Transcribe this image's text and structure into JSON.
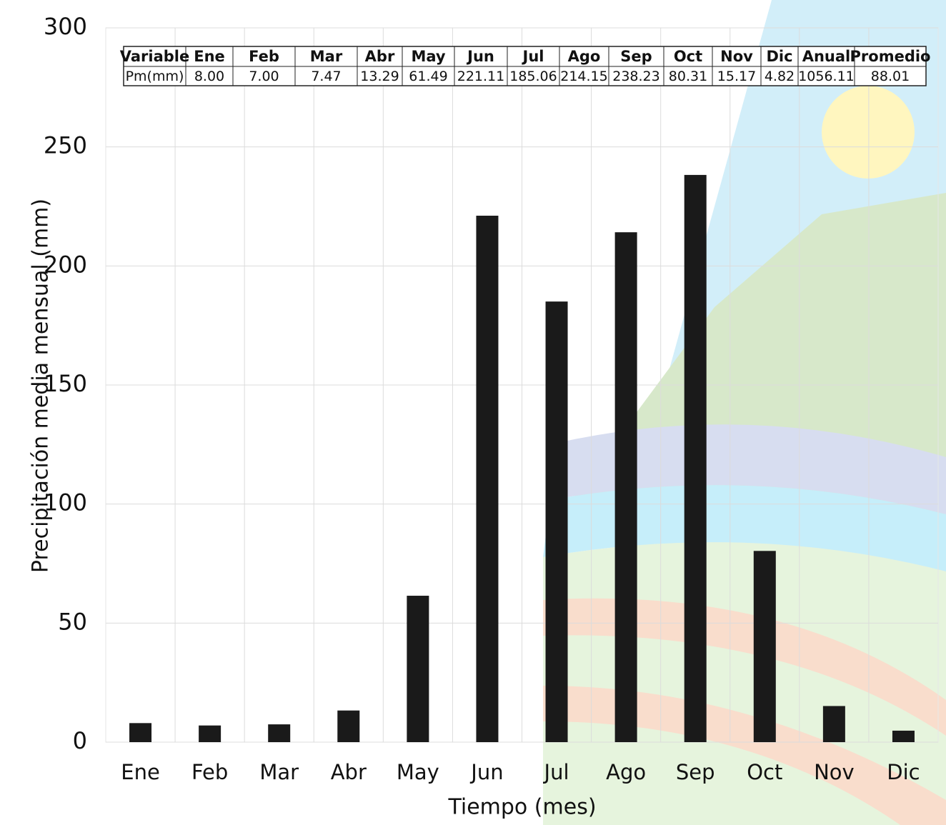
{
  "chart_data": {
    "type": "bar",
    "x_label": "Tiempo (mes)",
    "y_label": "Precipitación media mensual (mm)",
    "categories": [
      "Ene",
      "Feb",
      "Mar",
      "Abr",
      "May",
      "Jun",
      "Jul",
      "Ago",
      "Sep",
      "Oct",
      "Nov",
      "Dic"
    ],
    "values": [
      8,
      7,
      7.47,
      13.29,
      61.49,
      221.11,
      185.06,
      214.15,
      238.23,
      80.31,
      15.17,
      4.82
    ],
    "value_labels": [
      "8.00",
      "7.00",
      "7.47",
      "13.29",
      "61.49",
      "221.11",
      "185.06",
      "214.15",
      "238.23",
      "80.31",
      "15.17",
      "4.82"
    ],
    "color": "#1a1a1a",
    "ylim": [
      0,
      300
    ],
    "yticks": [
      0,
      50,
      100,
      150,
      200,
      250,
      300
    ],
    "grid": true,
    "table": {
      "header": "Variable",
      "row_label": "Pm(mm)",
      "extra_columns": [
        "Anual",
        "Promedio"
      ],
      "extra_values": [
        1056.11,
        88.01
      ]
    }
  }
}
